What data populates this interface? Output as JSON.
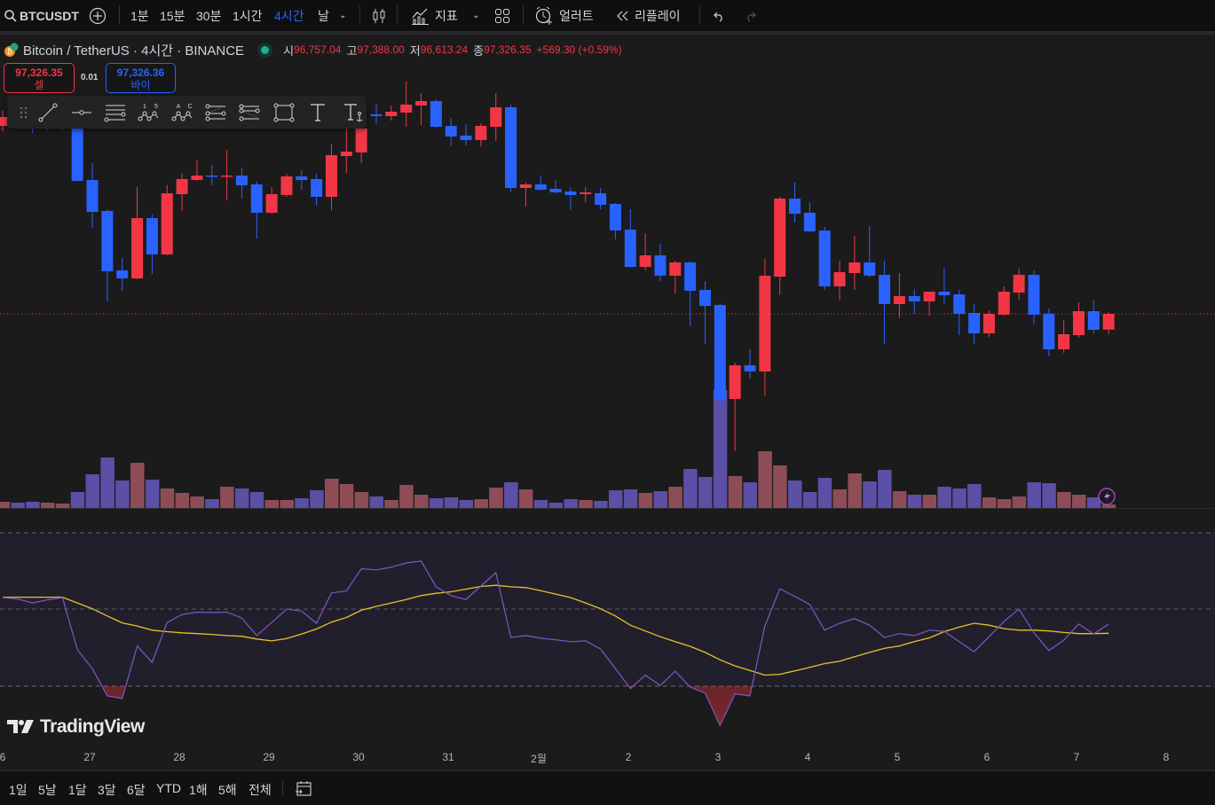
{
  "toolbar": {
    "symbol": "BTCUSDT",
    "intervals": [
      "1분",
      "15분",
      "30분",
      "1시간",
      "4시간",
      "날"
    ],
    "active_interval": "4시간",
    "indicators_label": "지표",
    "alert_label": "얼러트",
    "replay_label": "리플레이"
  },
  "legend": {
    "title": "Bitcoin / TetherUS · 4시간 · BINANCE",
    "open_label": "시",
    "open": "96,757.04",
    "high_label": "고",
    "high": "97,388.00",
    "low_label": "저",
    "low": "96,613.24",
    "close_label": "종",
    "close": "97,326.35",
    "change": "+569.30 (+0.59%)"
  },
  "trade": {
    "sell_price": "97,326.35",
    "sell_label": "셀",
    "spread": "0.01",
    "buy_price": "97,326.36",
    "buy_label": "바이"
  },
  "drawing_tools": {
    "wave_labels_1": [
      "1",
      "5"
    ],
    "wave_labels_2": [
      "A",
      "C"
    ]
  },
  "colors": {
    "up": "#f23645",
    "down": "#2962ff",
    "vol_up": "#8e4d56",
    "vol_down": "#5b4fa6",
    "rsi": "#7e57c2",
    "rsi_ma": "#e6c229",
    "accent": "#2962ff"
  },
  "chart_data": {
    "type": "candlestick",
    "symbol": "BTCUSDT",
    "last_price": 97326.35,
    "candles_ohlc": [
      [
        104110,
        104654,
        103918,
        104430
      ],
      [
        104494,
        104654,
        104110,
        104238
      ],
      [
        104206,
        104398,
        103854,
        104142
      ],
      [
        104110,
        104494,
        103982,
        104334
      ],
      [
        104142,
        104558,
        103982,
        104366
      ],
      [
        104174,
        104430,
        102094,
        102126
      ],
      [
        102158,
        102766,
        100430,
        101006
      ],
      [
        101038,
        101102,
        97774,
        98862
      ],
      [
        98894,
        99342,
        98158,
        98606
      ],
      [
        98606,
        101902,
        98574,
        100782
      ],
      [
        100782,
        100910,
        98766,
        99470
      ],
      [
        99470,
        101966,
        99438,
        101678
      ],
      [
        101646,
        102414,
        101038,
        102190
      ],
      [
        102158,
        102862,
        102126,
        102318
      ],
      [
        102318,
        102702,
        101966,
        102286
      ],
      [
        102286,
        103246,
        101422,
        102318
      ],
      [
        102318,
        102606,
        101486,
        101966
      ],
      [
        101998,
        102094,
        100046,
        100974
      ],
      [
        100974,
        101902,
        100942,
        101646
      ],
      [
        101614,
        102382,
        101550,
        102286
      ],
      [
        102286,
        102510,
        101806,
        102158
      ],
      [
        102190,
        102382,
        101230,
        101550
      ],
      [
        101550,
        103438,
        101070,
        103054
      ],
      [
        103022,
        104014,
        102414,
        103182
      ],
      [
        103150,
        104878,
        102766,
        104014
      ],
      [
        104526,
        104910,
        104174,
        104462
      ],
      [
        104462,
        104846,
        104302,
        104622
      ],
      [
        104590,
        105710,
        104078,
        104878
      ],
      [
        104846,
        105294,
        104142,
        105006
      ],
      [
        105006,
        105070,
        104046,
        104078
      ],
      [
        104110,
        104398,
        103374,
        103726
      ],
      [
        103758,
        104174,
        103406,
        103598
      ],
      [
        103598,
        104206,
        103374,
        104110
      ],
      [
        104078,
        105294,
        103566,
        104782
      ],
      [
        104782,
        104878,
        101742,
        101870
      ],
      [
        101870,
        102062,
        101198,
        101998
      ],
      [
        101998,
        102318,
        101774,
        101806
      ],
      [
        101838,
        102158,
        101678,
        101710
      ],
      [
        101742,
        101870,
        101070,
        101614
      ],
      [
        101646,
        101902,
        101358,
        101710
      ],
      [
        101678,
        101870,
        101102,
        101262
      ],
      [
        101294,
        101326,
        100014,
        100334
      ],
      [
        100366,
        101102,
        98990,
        99022
      ],
      [
        99022,
        100238,
        98894,
        99438
      ],
      [
        99438,
        99854,
        98510,
        98702
      ],
      [
        98702,
        99246,
        98062,
        99182
      ],
      [
        99182,
        99214,
        96878,
        98158
      ],
      [
        98190,
        98510,
        96238,
        97614
      ],
      [
        97646,
        97710,
        93934,
        94254
      ],
      [
        94254,
        95566,
        92366,
        95470
      ],
      [
        95470,
        96046,
        94990,
        95246
      ],
      [
        95246,
        99310,
        94382,
        98702
      ],
      [
        98670,
        101550,
        98014,
        101486
      ],
      [
        101486,
        102062,
        100622,
        100942
      ],
      [
        100974,
        101358,
        100270,
        100302
      ],
      [
        100334,
        100462,
        98190,
        98318
      ],
      [
        98318,
        99246,
        97806,
        98830
      ],
      [
        98798,
        100142,
        98190,
        99182
      ],
      [
        99182,
        100494,
        98638,
        98702
      ],
      [
        98734,
        99246,
        96238,
        97678
      ],
      [
        97678,
        98798,
        97166,
        97966
      ],
      [
        97966,
        98222,
        97326,
        97774
      ],
      [
        97774,
        98126,
        97262,
        98126
      ],
      [
        98126,
        98990,
        97678,
        97998
      ],
      [
        98030,
        98190,
        96558,
        97326
      ],
      [
        97358,
        97678,
        96238,
        96622
      ],
      [
        96622,
        97454,
        96494,
        97326
      ],
      [
        97294,
        98318,
        97262,
        98126
      ],
      [
        98094,
        98958,
        97838,
        98734
      ],
      [
        98734,
        98894,
        96942,
        97294
      ],
      [
        97326,
        97518,
        95790,
        96046
      ],
      [
        96046,
        97102,
        95918,
        96590
      ],
      [
        96558,
        97742,
        96462,
        97422
      ],
      [
        97422,
        97838,
        96622,
        96750
      ],
      [
        96757.04,
        97388.0,
        96613.24,
        97326.35
      ]
    ],
    "volume": [
      7,
      6,
      7,
      6,
      5,
      18,
      38,
      57,
      31,
      51,
      32,
      22,
      17,
      13,
      10,
      24,
      22,
      18,
      9,
      9,
      11,
      20,
      33,
      27,
      18,
      13,
      9,
      26,
      15,
      11,
      12,
      9,
      10,
      23,
      29,
      21,
      9,
      6,
      10,
      9,
      8,
      20,
      21,
      17,
      19,
      24,
      44,
      35,
      133,
      36,
      29,
      64,
      48,
      31,
      18,
      34,
      21,
      39,
      30,
      43,
      19,
      15,
      15,
      24,
      22,
      27,
      12,
      10,
      13,
      29,
      28,
      18,
      15,
      12,
      4
    ],
    "rsi": [
      53,
      52.6,
      51.6,
      52.4,
      53,
      39.4,
      34.5,
      27.4,
      26.7,
      40.4,
      36.1,
      46.5,
      48.6,
      49.2,
      49.1,
      49.2,
      47.7,
      43.1,
      46.5,
      50,
      49.5,
      46.3,
      54.2,
      54.7,
      60.5,
      60.2,
      60.9,
      62,
      62.5,
      55.8,
      53.5,
      52.5,
      56,
      59.5,
      42.6,
      43.1,
      42.4,
      42,
      41.5,
      41.7,
      39.6,
      34.5,
      29.3,
      32.8,
      30.1,
      33.8,
      29.7,
      28.1,
      19.7,
      27.9,
      27.4,
      45.6,
      55.3,
      53.3,
      51.2,
      44.5,
      46.3,
      47.5,
      45.8,
      42.6,
      43.6,
      43.1,
      44.5,
      44.2,
      41.5,
      38.9,
      42.8,
      46.8,
      50,
      43.8,
      39.2,
      41.9,
      46.1,
      43.5,
      46.1
    ],
    "rsi_ma": [
      53.1,
      53.1,
      53.1,
      53.1,
      53.1,
      51.6,
      50.1,
      48.2,
      46.4,
      45.6,
      44.5,
      44.1,
      43.8,
      43.6,
      43.4,
      43.1,
      42.9,
      42.2,
      41.7,
      42.3,
      43.5,
      44.8,
      46.6,
      47.8,
      49.7,
      50.7,
      51.6,
      52.5,
      53.5,
      54.1,
      54.5,
      55.2,
      55.9,
      56.2,
      55.8,
      55.6,
      54.8,
      53.9,
      53,
      51.6,
      50.1,
      48.2,
      45.8,
      44.3,
      42.8,
      41.5,
      40.3,
      38.7,
      36.8,
      35.2,
      34,
      32.8,
      33,
      33.9,
      34.8,
      35.8,
      36.4,
      37.6,
      38.7,
      39.8,
      40.4,
      41.5,
      42.5,
      44.1,
      45.3,
      46.3,
      45.8,
      44.9,
      44.5,
      44.5,
      44.3,
      43.9,
      43.6,
      43.6,
      43.7
    ],
    "rsi_levels": [
      70,
      50,
      30
    ],
    "x_tick_labels": [
      "6",
      "27",
      "28",
      "29",
      "30",
      "31",
      "2월",
      "2",
      "3",
      "4",
      "5",
      "6",
      "7",
      "8"
    ]
  },
  "range_bar": {
    "ranges": [
      "1일",
      "5날",
      "1달",
      "3달",
      "6달",
      "YTD",
      "1해",
      "5해",
      "전체"
    ]
  },
  "branding": {
    "logo_text": "TradingView"
  }
}
